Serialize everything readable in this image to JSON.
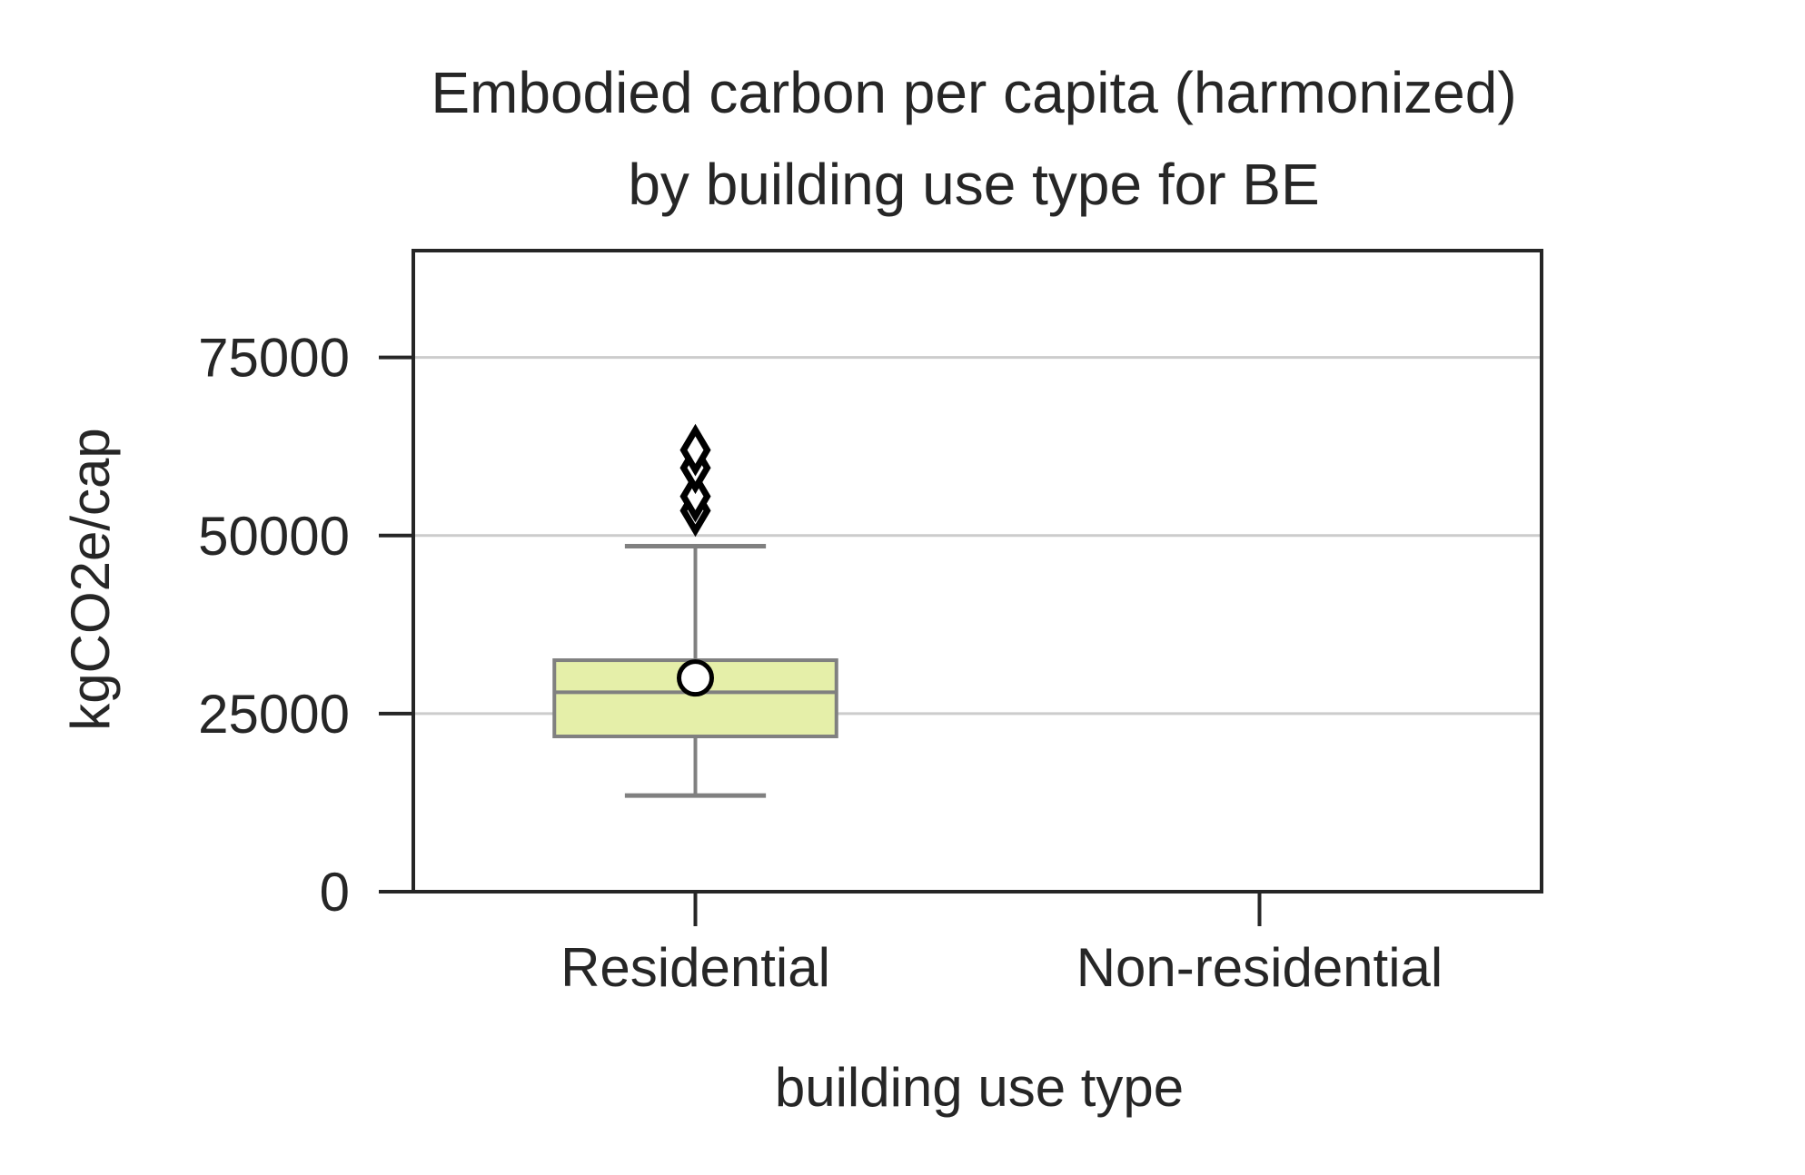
{
  "chart_data": {
    "type": "box",
    "title": [
      "Embodied carbon per capita (harmonized)",
      "by building use type for BE"
    ],
    "xlabel": "building use type",
    "ylabel": "kgCO2e/cap",
    "categories": [
      "Residential",
      "Non-residential"
    ],
    "ylim": [
      0,
      90000
    ],
    "yticks": [
      0,
      25000,
      50000,
      75000
    ],
    "grid": "y",
    "boxes": [
      {
        "category": "Residential",
        "whisker_low": 13500,
        "q1": 21800,
        "median": 28000,
        "q3": 32500,
        "whisker_high": 48500,
        "mean": 30000,
        "outliers": [
          53500,
          55500,
          59500,
          62000
        ]
      }
    ]
  },
  "colors": {
    "box_fill": "#e5efa9",
    "box_edge": "#808080",
    "grid": "#cccccc",
    "axis": "#262626",
    "mean_fill": "#ffffff",
    "outlier": "#000000"
  }
}
